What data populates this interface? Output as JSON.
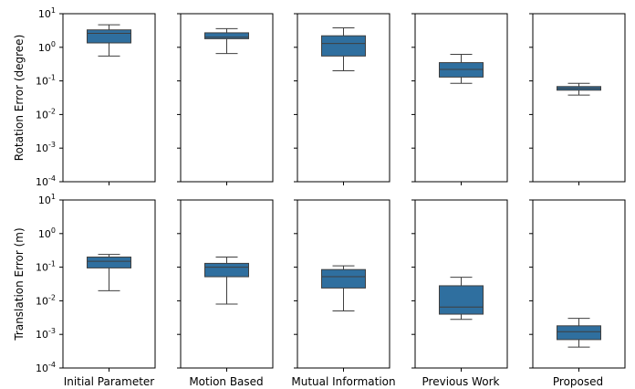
{
  "chart_data": {
    "type": "box",
    "categories": [
      "Initial Parameter",
      "Motion Based",
      "Mutual Information",
      "Previous Work",
      "Proposed"
    ],
    "box_color": "#2f6f9f",
    "line_color": "#3f3f3f",
    "yscale": "log",
    "ylim": [
      0.0001,
      10
    ],
    "ytick_base": "10",
    "ytick_exponents": [
      "1",
      "0",
      "-1",
      "-2",
      "-3",
      "-4"
    ],
    "grid": false,
    "rows": [
      {
        "ylabel": "Rotation Error (degree)",
        "boxes": [
          {
            "category": "Initial Parameter",
            "whislo": 0.55,
            "q1": 1.35,
            "med": 2.6,
            "q3": 3.3,
            "whishi": 4.7
          },
          {
            "category": "Motion Based",
            "whislo": 0.65,
            "q1": 1.8,
            "med": 2.0,
            "q3": 2.7,
            "whishi": 3.6
          },
          {
            "category": "Mutual Information",
            "whislo": 0.2,
            "q1": 0.55,
            "med": 1.3,
            "q3": 2.2,
            "whishi": 3.8
          },
          {
            "category": "Previous Work",
            "whislo": 0.085,
            "q1": 0.13,
            "med": 0.22,
            "q3": 0.35,
            "whishi": 0.62
          },
          {
            "category": "Proposed",
            "whislo": 0.038,
            "q1": 0.053,
            "med": 0.06,
            "q3": 0.068,
            "whishi": 0.085
          }
        ]
      },
      {
        "ylabel": "Translation Error (m)",
        "boxes": [
          {
            "category": "Initial Parameter",
            "whislo": 0.02,
            "q1": 0.095,
            "med": 0.15,
            "q3": 0.2,
            "whishi": 0.24
          },
          {
            "category": "Motion Based",
            "whislo": 0.008,
            "q1": 0.052,
            "med": 0.1,
            "q3": 0.13,
            "whishi": 0.2
          },
          {
            "category": "Mutual Information",
            "whislo": 0.005,
            "q1": 0.024,
            "med": 0.052,
            "q3": 0.085,
            "whishi": 0.11
          },
          {
            "category": "Previous Work",
            "whislo": 0.0028,
            "q1": 0.004,
            "med": 0.0065,
            "q3": 0.028,
            "whishi": 0.05
          },
          {
            "category": "Proposed",
            "whislo": 0.00042,
            "q1": 0.0007,
            "med": 0.0012,
            "q3": 0.0018,
            "whishi": 0.003
          }
        ]
      }
    ]
  }
}
